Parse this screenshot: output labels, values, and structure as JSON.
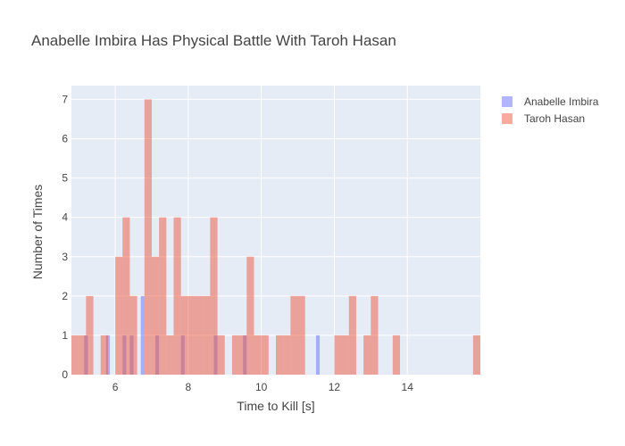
{
  "chart_data": {
    "type": "bar",
    "subtype": "overlaid-histogram",
    "title": "Anabelle Imbira Has Physical Battle With Taroh Hasan",
    "xlabel": "Time to Kill [s]",
    "ylabel": "Number of Times",
    "xlim": [
      4.8,
      16
    ],
    "ylim": [
      0,
      7.35
    ],
    "xticks": [
      6,
      8,
      10,
      12,
      14
    ],
    "yticks": [
      0,
      1,
      2,
      3,
      4,
      5,
      6,
      7
    ],
    "grid": true,
    "legend_position": "top-right",
    "background": "#e5ecf6",
    "bin_width": 0.2,
    "series": [
      {
        "name": "Anabelle Imbira",
        "color": "#636efa",
        "opacity": 0.5,
        "bin_width": 0.1,
        "bins": [
          {
            "x": 5.2,
            "count": 1
          },
          {
            "x": 5.8,
            "count": 1
          },
          {
            "x": 6.25,
            "count": 1
          },
          {
            "x": 6.45,
            "count": 1
          },
          {
            "x": 6.75,
            "count": 2
          },
          {
            "x": 7.15,
            "count": 1
          },
          {
            "x": 7.85,
            "count": 1
          },
          {
            "x": 8.75,
            "count": 1
          },
          {
            "x": 9.55,
            "count": 1
          },
          {
            "x": 11.55,
            "count": 1
          }
        ]
      },
      {
        "name": "Taroh Hasan",
        "color": "#ef553b",
        "opacity": 0.5,
        "bin_width": 0.2,
        "bins": [
          {
            "x": 4.9,
            "count": 1
          },
          {
            "x": 5.1,
            "count": 1
          },
          {
            "x": 5.3,
            "count": 2
          },
          {
            "x": 5.7,
            "count": 1
          },
          {
            "x": 6.1,
            "count": 3
          },
          {
            "x": 6.3,
            "count": 4
          },
          {
            "x": 6.5,
            "count": 2
          },
          {
            "x": 6.9,
            "count": 7
          },
          {
            "x": 7.1,
            "count": 3
          },
          {
            "x": 7.3,
            "count": 4
          },
          {
            "x": 7.5,
            "count": 1
          },
          {
            "x": 7.7,
            "count": 4
          },
          {
            "x": 7.9,
            "count": 2
          },
          {
            "x": 8.1,
            "count": 2
          },
          {
            "x": 8.3,
            "count": 2
          },
          {
            "x": 8.5,
            "count": 2
          },
          {
            "x": 8.7,
            "count": 4
          },
          {
            "x": 8.9,
            "count": 1
          },
          {
            "x": 9.3,
            "count": 1
          },
          {
            "x": 9.5,
            "count": 1
          },
          {
            "x": 9.7,
            "count": 3
          },
          {
            "x": 9.9,
            "count": 1
          },
          {
            "x": 10.1,
            "count": 1
          },
          {
            "x": 10.5,
            "count": 1
          },
          {
            "x": 10.7,
            "count": 1
          },
          {
            "x": 10.9,
            "count": 2
          },
          {
            "x": 11.1,
            "count": 2
          },
          {
            "x": 12.1,
            "count": 1
          },
          {
            "x": 12.3,
            "count": 1
          },
          {
            "x": 12.5,
            "count": 2
          },
          {
            "x": 12.9,
            "count": 1
          },
          {
            "x": 13.1,
            "count": 2
          },
          {
            "x": 13.7,
            "count": 1
          },
          {
            "x": 15.9,
            "count": 1
          }
        ]
      }
    ]
  }
}
